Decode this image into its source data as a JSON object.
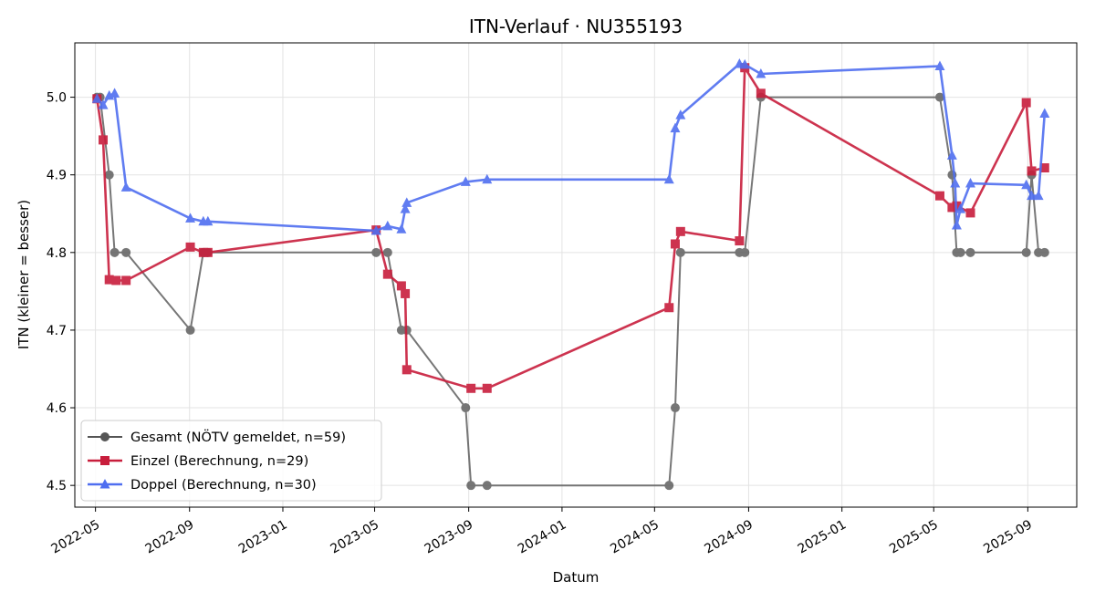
{
  "chart_data": {
    "type": "line",
    "title": "ITN-Verlauf · NU355193",
    "xlabel": "Datum",
    "ylabel": "ITN  (kleiner = besser)",
    "xlim": [
      "2022-04-04",
      "2025-11-04"
    ],
    "ylim": [
      4.472,
      5.07
    ],
    "x_ticks": [
      "2022-05",
      "2022-09",
      "2023-01",
      "2023-05",
      "2023-09",
      "2024-01",
      "2024-05",
      "2024-09",
      "2025-01",
      "2025-05",
      "2025-09"
    ],
    "y_ticks": [
      4.5,
      4.6,
      4.7,
      4.8,
      4.9,
      5.0
    ],
    "grid": true,
    "legend_position": "lower-left",
    "series": [
      {
        "name": "Gesamt (NÖTV gemeldet, n=59)",
        "color": "#555555",
        "marker": "circle",
        "points": [
          [
            "2022-05-03",
            5.0
          ],
          [
            "2022-05-07",
            5.0
          ],
          [
            "2022-05-19",
            4.9
          ],
          [
            "2022-05-26",
            4.8
          ],
          [
            "2022-06-10",
            4.8
          ],
          [
            "2022-09-02",
            4.7
          ],
          [
            "2022-09-19",
            4.8
          ],
          [
            "2022-09-25",
            4.8
          ],
          [
            "2023-05-03",
            4.8
          ],
          [
            "2023-05-18",
            4.8
          ],
          [
            "2023-06-05",
            4.7
          ],
          [
            "2023-06-12",
            4.7
          ],
          [
            "2023-08-28",
            4.6
          ],
          [
            "2023-09-04",
            4.5
          ],
          [
            "2023-09-25",
            4.5
          ],
          [
            "2024-05-20",
            4.5
          ],
          [
            "2024-05-28",
            4.6
          ],
          [
            "2024-06-04",
            4.8
          ],
          [
            "2024-08-20",
            4.8
          ],
          [
            "2024-08-27",
            4.8
          ],
          [
            "2024-09-17",
            5.0
          ],
          [
            "2025-05-09",
            5.0
          ],
          [
            "2025-05-25",
            4.9
          ],
          [
            "2025-05-31",
            4.8
          ],
          [
            "2025-06-05",
            4.8
          ],
          [
            "2025-06-18",
            4.8
          ],
          [
            "2025-08-30",
            4.8
          ],
          [
            "2025-09-06",
            4.9
          ],
          [
            "2025-09-15",
            4.8
          ],
          [
            "2025-09-23",
            4.8
          ]
        ]
      },
      {
        "name": "Einzel (Berechnung, n=29)",
        "color": "#c81e3c",
        "marker": "square",
        "points": [
          [
            "2022-05-03",
            4.998
          ],
          [
            "2022-05-11",
            4.945
          ],
          [
            "2022-05-19",
            4.765
          ],
          [
            "2022-05-28",
            4.764
          ],
          [
            "2022-06-10",
            4.764
          ],
          [
            "2022-09-02",
            4.807
          ],
          [
            "2022-09-19",
            4.8
          ],
          [
            "2022-09-25",
            4.8
          ],
          [
            "2023-05-03",
            4.829
          ],
          [
            "2023-05-18",
            4.772
          ],
          [
            "2023-06-05",
            4.757
          ],
          [
            "2023-06-10",
            4.747
          ],
          [
            "2023-06-12",
            4.649
          ],
          [
            "2023-09-04",
            4.625
          ],
          [
            "2023-09-25",
            4.625
          ],
          [
            "2024-05-20",
            4.729
          ],
          [
            "2024-05-28",
            4.811
          ],
          [
            "2024-06-04",
            4.827
          ],
          [
            "2024-08-20",
            4.815
          ],
          [
            "2024-08-27",
            5.038
          ],
          [
            "2024-09-17",
            5.005
          ],
          [
            "2025-05-09",
            4.873
          ],
          [
            "2025-05-25",
            4.858
          ],
          [
            "2025-05-31",
            4.86
          ],
          [
            "2025-06-18",
            4.851
          ],
          [
            "2025-08-30",
            4.993
          ],
          [
            "2025-09-06",
            4.905
          ],
          [
            "2025-09-23",
            4.909
          ]
        ]
      },
      {
        "name": "Doppel (Berechnung, n=30)",
        "color": "#4f6ef0",
        "marker": "triangle",
        "points": [
          [
            "2022-05-03",
            4.998
          ],
          [
            "2022-05-11",
            4.99
          ],
          [
            "2022-05-19",
            5.002
          ],
          [
            "2022-05-26",
            5.005
          ],
          [
            "2022-06-10",
            4.884
          ],
          [
            "2022-09-02",
            4.844
          ],
          [
            "2022-09-19",
            4.84
          ],
          [
            "2022-09-25",
            4.84
          ],
          [
            "2023-05-03",
            4.828
          ],
          [
            "2023-05-18",
            4.834
          ],
          [
            "2023-06-05",
            4.83
          ],
          [
            "2023-06-10",
            4.856
          ],
          [
            "2023-06-12",
            4.864
          ],
          [
            "2023-08-28",
            4.891
          ],
          [
            "2023-09-25",
            4.894
          ],
          [
            "2024-05-20",
            4.894
          ],
          [
            "2024-05-28",
            4.96
          ],
          [
            "2024-06-04",
            4.977
          ],
          [
            "2024-08-20",
            5.043
          ],
          [
            "2024-08-27",
            5.042
          ],
          [
            "2024-09-17",
            5.03
          ],
          [
            "2025-05-09",
            5.04
          ],
          [
            "2025-05-25",
            4.925
          ],
          [
            "2025-05-29",
            4.889
          ],
          [
            "2025-05-31",
            4.835
          ],
          [
            "2025-06-05",
            4.856
          ],
          [
            "2025-06-18",
            4.889
          ],
          [
            "2025-08-30",
            4.887
          ],
          [
            "2025-09-06",
            4.873
          ],
          [
            "2025-09-15",
            4.873
          ],
          [
            "2025-09-23",
            4.979
          ]
        ]
      }
    ]
  }
}
